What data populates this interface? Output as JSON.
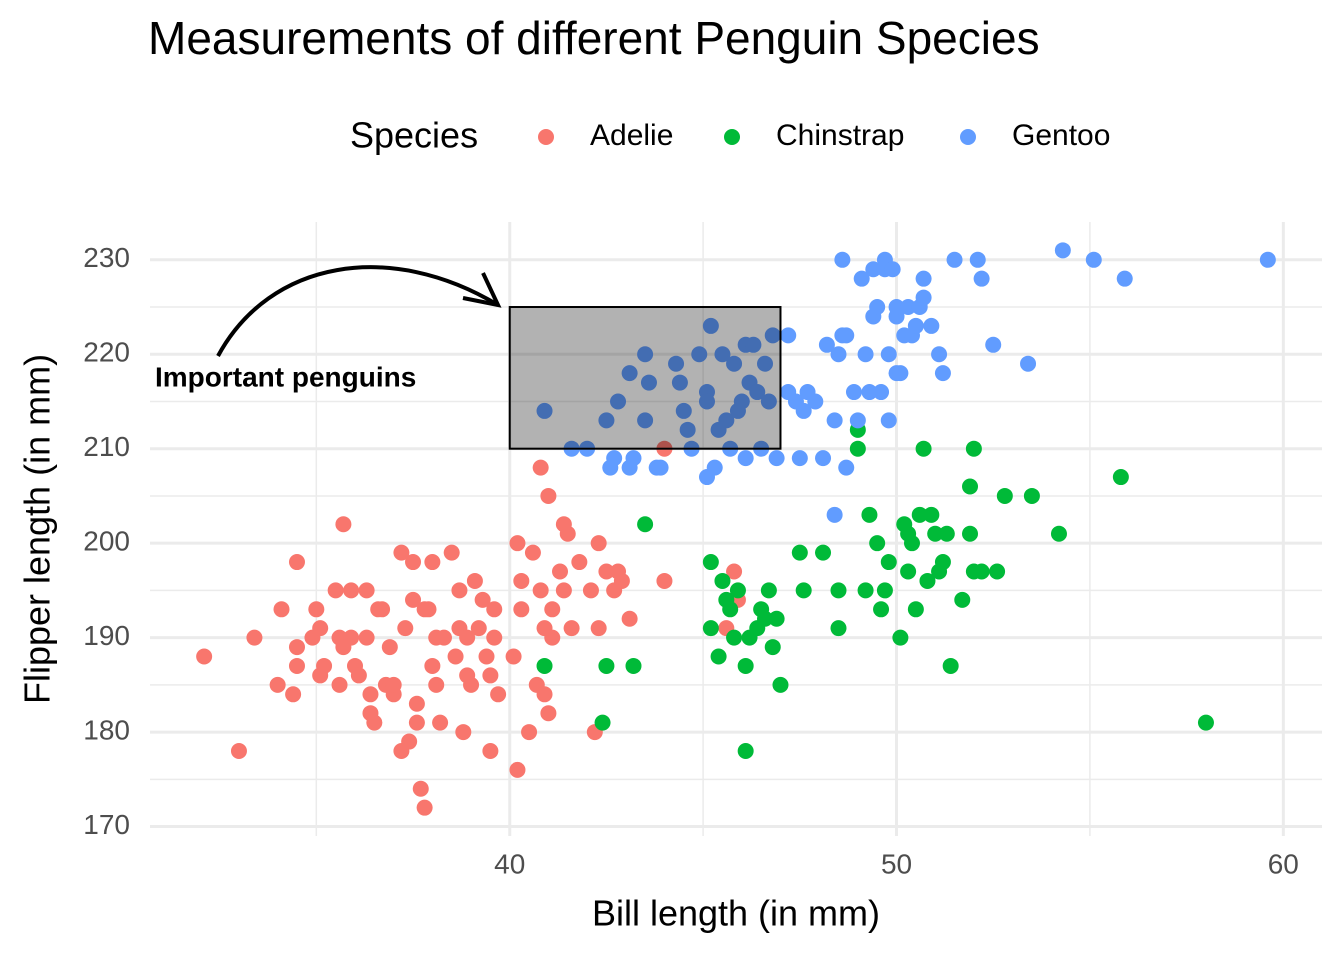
{
  "chart_data": {
    "type": "scatter",
    "title": "Measurements of different Penguin Species",
    "x_label": "Bill length (in mm)",
    "y_label": "Flipper length (in mm)",
    "legend_title": "Species",
    "xlim": [
      30.7,
      61.0
    ],
    "ylim": [
      169.0,
      234.0
    ],
    "xticks": [
      40,
      50,
      60
    ],
    "yticks": [
      170,
      180,
      190,
      200,
      210,
      220,
      230
    ],
    "xminor": [
      35,
      45,
      55
    ],
    "yminor": [
      175,
      185,
      195,
      205,
      215,
      225
    ],
    "grid": true,
    "annotation": {
      "text": "Important penguins",
      "xmin": 40,
      "xmax": 47,
      "ymin": 210,
      "ymax": 225
    },
    "series": [
      {
        "name": "Adelie",
        "color": "#F8766D",
        "x": [
          32.1,
          33.0,
          33.4,
          34.0,
          34.1,
          34.4,
          34.5,
          34.5,
          34.5,
          34.9,
          35.0,
          35.1,
          35.1,
          35.2,
          35.5,
          35.6,
          35.6,
          35.7,
          35.7,
          35.9,
          35.9,
          36.0,
          36.1,
          36.3,
          36.3,
          36.4,
          36.4,
          36.5,
          36.6,
          36.7,
          36.8,
          36.9,
          37.0,
          37.0,
          37.2,
          37.2,
          37.3,
          37.4,
          37.5,
          37.5,
          37.6,
          37.6,
          37.7,
          37.8,
          37.8,
          37.9,
          38.0,
          38.0,
          38.1,
          38.1,
          38.2,
          38.3,
          38.5,
          38.6,
          38.7,
          38.7,
          38.8,
          38.9,
          38.9,
          39.0,
          39.1,
          39.2,
          39.3,
          39.4,
          39.5,
          39.5,
          39.6,
          39.6,
          39.7,
          40.1,
          40.2,
          40.2,
          40.3,
          40.3,
          40.5,
          40.6,
          40.7,
          40.8,
          40.8,
          40.9,
          40.9,
          41.0,
          41.0,
          41.1,
          41.1,
          41.3,
          41.4,
          41.4,
          41.5,
          41.6,
          41.8,
          42.1,
          42.2,
          42.3,
          42.3,
          42.5,
          42.7,
          42.8,
          42.9,
          43.1,
          44.0,
          44.0,
          45.6,
          45.8,
          45.9
        ],
        "values": [
          188,
          178,
          190,
          185,
          193,
          184,
          187,
          198,
          189,
          190,
          193,
          191,
          186,
          187,
          195,
          190,
          185,
          202,
          189,
          195,
          190,
          187,
          186,
          195,
          190,
          184,
          182,
          181,
          193,
          193,
          185,
          189,
          184,
          185,
          178,
          199,
          191,
          179,
          198,
          194,
          183,
          181,
          174,
          193,
          172,
          193,
          198,
          187,
          185,
          190,
          181,
          190,
          199,
          188,
          195,
          191,
          180,
          186,
          190,
          185,
          196,
          191,
          194,
          188,
          186,
          178,
          193,
          190,
          184,
          188,
          176,
          200,
          196,
          193,
          180,
          199,
          185,
          208,
          195,
          184,
          191,
          182,
          205,
          193,
          190,
          197,
          202,
          195,
          201,
          191,
          198,
          195,
          180,
          191,
          200,
          197,
          195,
          197,
          196,
          192,
          196,
          210,
          191,
          197,
          194
        ]
      },
      {
        "name": "Chinstrap",
        "color": "#00BA38",
        "x": [
          40.9,
          42.4,
          42.5,
          43.2,
          43.5,
          45.2,
          45.2,
          45.4,
          45.5,
          45.6,
          45.7,
          45.8,
          45.9,
          46.1,
          46.1,
          46.2,
          46.4,
          46.5,
          46.6,
          46.7,
          46.8,
          46.9,
          47.0,
          47.5,
          47.6,
          48.1,
          48.5,
          48.5,
          49.0,
          49.0,
          49.2,
          49.3,
          49.5,
          49.6,
          49.7,
          49.8,
          50.1,
          50.2,
          50.3,
          50.3,
          50.4,
          50.5,
          50.6,
          50.7,
          50.8,
          50.9,
          51.0,
          51.1,
          51.2,
          51.3,
          51.4,
          51.7,
          51.9,
          51.9,
          52.0,
          52.0,
          52.2,
          52.6,
          52.8,
          53.5,
          54.2,
          55.8,
          58.0
        ],
        "values": [
          187,
          181,
          187,
          187,
          202,
          198,
          191,
          188,
          196,
          194,
          193,
          190,
          195,
          178,
          187,
          190,
          191,
          193,
          192,
          195,
          189,
          192,
          185,
          199,
          195,
          199,
          191,
          195,
          212,
          210,
          195,
          203,
          200,
          193,
          195,
          198,
          190,
          202,
          201,
          197,
          200,
          193,
          203,
          210,
          196,
          203,
          201,
          197,
          198,
          201,
          187,
          194,
          206,
          201,
          210,
          197,
          197,
          197,
          205,
          205,
          201,
          207,
          181
        ]
      },
      {
        "name": "Gentoo",
        "color": "#619CFF",
        "x": [
          40.9,
          41.6,
          42.0,
          42.6,
          42.7,
          42.5,
          42.8,
          43.1,
          43.2,
          43.1,
          43.5,
          43.5,
          43.6,
          43.8,
          43.9,
          44.3,
          44.4,
          44.5,
          44.6,
          44.7,
          44.9,
          45.1,
          45.1,
          45.1,
          45.2,
          45.3,
          45.4,
          45.5,
          45.6,
          45.7,
          45.8,
          45.9,
          46.0,
          46.1,
          46.1,
          46.2,
          46.3,
          46.4,
          46.5,
          46.6,
          46.7,
          46.8,
          46.9,
          47.2,
          47.2,
          47.4,
          47.5,
          47.6,
          47.7,
          47.9,
          48.1,
          48.2,
          48.4,
          48.4,
          48.5,
          48.6,
          48.7,
          48.7,
          48.9,
          49.0,
          48.6,
          49.1,
          49.2,
          49.3,
          49.4,
          49.4,
          49.5,
          49.6,
          49.7,
          49.7,
          49.8,
          49.8,
          49.9,
          50.0,
          50.0,
          50.0,
          50.1,
          50.2,
          50.3,
          50.4,
          50.5,
          50.6,
          50.7,
          50.7,
          50.9,
          51.1,
          51.2,
          51.5,
          52.1,
          52.2,
          52.5,
          53.4,
          54.3,
          55.1,
          55.9,
          59.6
        ],
        "values": [
          214,
          210,
          210,
          208,
          209,
          213,
          215,
          208,
          209,
          218,
          220,
          213,
          217,
          208,
          208,
          219,
          217,
          214,
          212,
          210,
          220,
          216,
          207,
          215,
          223,
          208,
          212,
          220,
          213,
          210,
          219,
          214,
          215,
          221,
          209,
          217,
          221,
          216,
          210,
          219,
          215,
          222,
          209,
          222,
          216,
          215,
          209,
          214,
          216,
          215,
          209,
          221,
          213,
          203,
          220,
          222,
          208,
          222,
          216,
          213,
          230,
          228,
          220,
          216,
          229,
          224,
          225,
          216,
          229,
          230,
          213,
          220,
          229,
          224,
          225,
          218,
          218,
          222,
          225,
          222,
          223,
          225,
          226,
          228,
          223,
          220,
          218,
          230,
          230,
          228,
          221,
          219,
          231,
          230,
          228,
          230
        ]
      }
    ]
  }
}
